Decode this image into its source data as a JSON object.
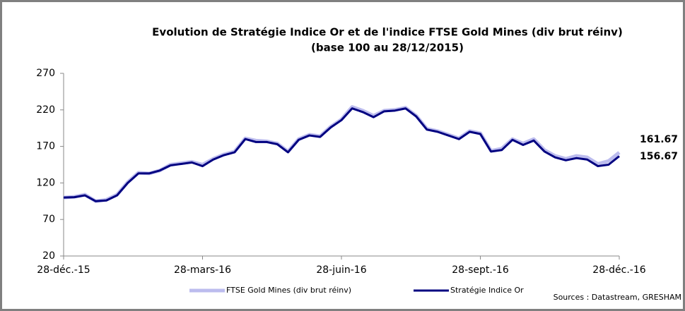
{
  "chart_data": {
    "type": "line",
    "title": "Evolution de Stratégie Indice Or et de l'indice FTSE Gold Mines (div brut réinv)",
    "subtitle": "(base 100 au 28/12/2015)",
    "source": "Sources : Datastream, GRESHAM",
    "categories": [
      "28-déc.-15",
      null,
      null,
      null,
      null,
      null,
      null,
      null,
      null,
      null,
      null,
      null,
      null,
      "28-mars-16",
      null,
      null,
      null,
      null,
      null,
      null,
      null,
      null,
      null,
      null,
      null,
      null,
      "28-juin-16",
      null,
      null,
      null,
      null,
      null,
      null,
      null,
      null,
      null,
      null,
      null,
      null,
      "28-sept.-16",
      null,
      null,
      null,
      null,
      null,
      null,
      null,
      null,
      null,
      null,
      null,
      null,
      "28-déc.-16"
    ],
    "series": [
      {
        "name": "FTSE Gold Mines (div brut réinv)",
        "color": "#bcbcee",
        "values": [
          100,
          101,
          104,
          95,
          97,
          104,
          121,
          134,
          133,
          137,
          145,
          147,
          149,
          145,
          153,
          159,
          163,
          181,
          178,
          177,
          174,
          163,
          180,
          186,
          184,
          197,
          207,
          224,
          219,
          212,
          219,
          220,
          223,
          212,
          194,
          191,
          186,
          181,
          191,
          188,
          164,
          167,
          180,
          174,
          180,
          165,
          157,
          153,
          157,
          155,
          146,
          150,
          161.67
        ]
      },
      {
        "name": "Stratégie Indice Or",
        "color": "#000080",
        "values": [
          100,
          100.5,
          103,
          95,
          96,
          103,
          120,
          133,
          133,
          137,
          144,
          146,
          148,
          143,
          152,
          158,
          162,
          180,
          176,
          176,
          173,
          162,
          179,
          185,
          183,
          196,
          206,
          222,
          217,
          210,
          218,
          219,
          222,
          211,
          193,
          190,
          185,
          180,
          190,
          187,
          163,
          165,
          179,
          172,
          178,
          163,
          155,
          151,
          154,
          152,
          143,
          145,
          156.67
        ]
      }
    ],
    "ylim": [
      20,
      270
    ],
    "yticks": [
      20,
      70,
      120,
      170,
      220,
      270
    ]
  }
}
